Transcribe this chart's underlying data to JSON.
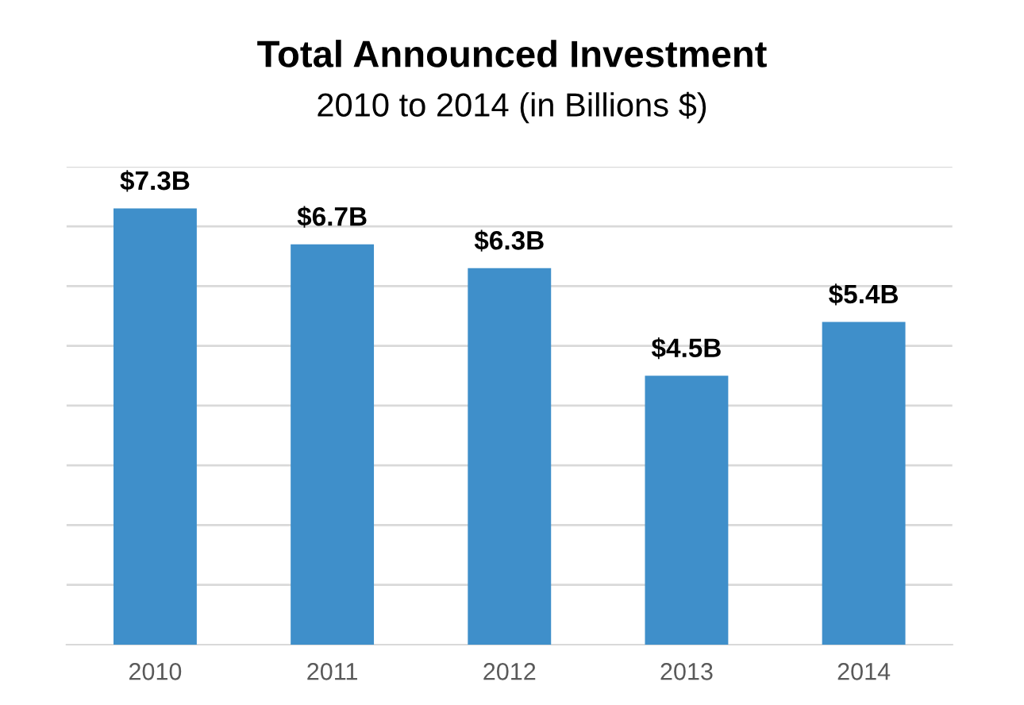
{
  "chart_data": {
    "type": "bar",
    "title": "Total Announced Investment",
    "subtitle": "2010 to 2014 (in Billions $)",
    "categories": [
      "2010",
      "2011",
      "2012",
      "2013",
      "2014"
    ],
    "values": [
      7.3,
      6.7,
      6.3,
      4.5,
      5.4
    ],
    "value_labels": [
      "$7.3B",
      "$6.7B",
      "$6.3B",
      "$4.5B",
      "$5.4B"
    ],
    "color": "#3f8fca",
    "ylim": [
      0,
      8
    ],
    "yticks": [
      {
        "value": 1,
        "label": null
      },
      {
        "value": 2,
        "label": null
      },
      {
        "value": 3,
        "label": null
      },
      {
        "value": 4,
        "label": null
      },
      {
        "value": 5,
        "label": null
      },
      {
        "value": 6,
        "label": null
      },
      {
        "value": 7,
        "label": null
      },
      {
        "value": 8,
        "label": null
      }
    ],
    "tick_labels": "x",
    "grid": "y"
  }
}
